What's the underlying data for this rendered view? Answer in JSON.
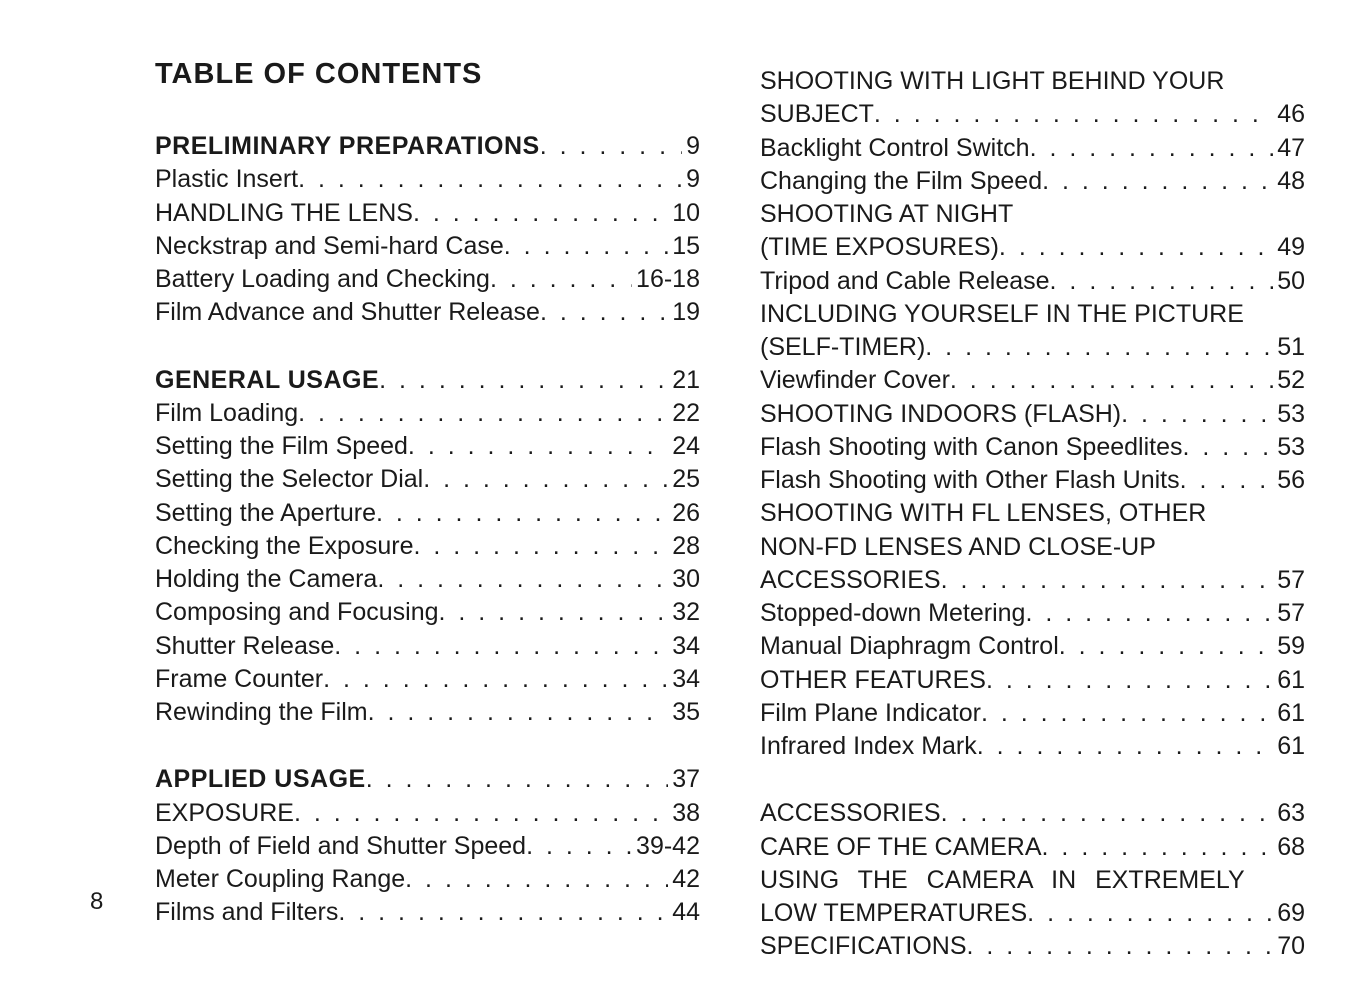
{
  "title": "TABLE OF CONTENTS",
  "page_number": "8",
  "left_groups": [
    {
      "entries": [
        {
          "label": "PRELIMINARY PREPARATIONS",
          "page": "9",
          "bold": true
        },
        {
          "label": "Plastic Insert",
          "page": "9"
        },
        {
          "label": "HANDLING THE LENS",
          "page": "10"
        },
        {
          "label": "Neckstrap and Semi-hard Case",
          "page": "15"
        },
        {
          "label": "Battery Loading and Checking",
          "page": "16-18"
        },
        {
          "label": "Film Advance and Shutter Release",
          "page": "19"
        }
      ]
    },
    {
      "entries": [
        {
          "label": "GENERAL USAGE",
          "page": "21",
          "bold": true
        },
        {
          "label": "Film Loading",
          "page": "22"
        },
        {
          "label": "Setting the Film Speed",
          "page": "24"
        },
        {
          "label": "Setting the Selector Dial",
          "page": "25"
        },
        {
          "label": "Setting the Aperture",
          "page": "26"
        },
        {
          "label": "Checking the Exposure",
          "page": "28"
        },
        {
          "label": "Holding the Camera",
          "page": "30"
        },
        {
          "label": "Composing and Focusing",
          "page": "32"
        },
        {
          "label": "Shutter Release",
          "page": "34"
        },
        {
          "label": "Frame Counter",
          "page": "34"
        },
        {
          "label": "Rewinding the Film",
          "page": "35"
        }
      ]
    },
    {
      "entries": [
        {
          "label": "APPLIED USAGE",
          "page": "37",
          "bold": true
        },
        {
          "label": "EXPOSURE",
          "page": "38"
        },
        {
          "label": "Depth of Field and Shutter Speed",
          "page": "39-42"
        },
        {
          "label": "Meter Coupling Range",
          "page": "42"
        },
        {
          "label": "Films and Filters",
          "page": "44"
        }
      ]
    }
  ],
  "right_groups": [
    {
      "entries": [
        {
          "label": "SHOOTING WITH LIGHT BEHIND YOUR",
          "nopage": true
        },
        {
          "label": "SUBJECT",
          "page": "46"
        },
        {
          "label": "Backlight Control Switch",
          "page": "47"
        },
        {
          "label": "Changing the Film Speed",
          "page": "48"
        },
        {
          "label": "SHOOTING  AT NIGHT",
          "nopage": true
        },
        {
          "label": "(TIME EXPOSURES)",
          "page": "49"
        },
        {
          "label": "Tripod and Cable Release",
          "page": "50"
        },
        {
          "label": "INCLUDING YOURSELF IN THE PICTURE",
          "nopage": true
        },
        {
          "label": "(SELF-TIMER)",
          "page": "51"
        },
        {
          "label": "Viewfinder Cover",
          "page": "52"
        },
        {
          "label": "SHOOTING INDOORS (FLASH)",
          "page": "53"
        },
        {
          "label": "Flash Shooting with Canon Speedlites",
          "page": "53"
        },
        {
          "label": "Flash Shooting with Other Flash Units",
          "page": "56"
        },
        {
          "label": "SHOOTING WITH FL LENSES, OTHER",
          "nopage": true
        },
        {
          "label": "NON-FD LENSES AND CLOSE-UP",
          "nopage": true
        },
        {
          "label": "ACCESSORIES",
          "page": "57"
        },
        {
          "label": "Stopped-down Metering",
          "page": "57"
        },
        {
          "label": "Manual Diaphragm Control",
          "page": "59"
        },
        {
          "label": "OTHER FEATURES",
          "page": "61"
        },
        {
          "label": "Film Plane Indicator",
          "page": "61"
        },
        {
          "label": "Infrared Index Mark",
          "page": "61"
        }
      ]
    },
    {
      "entries": [
        {
          "label": "ACCESSORIES",
          "page": "63"
        },
        {
          "label": "CARE OF THE CAMERA",
          "page": "68"
        },
        {
          "label": "USING THE CAMERA IN EXTREMELY",
          "nopage": true,
          "wide": true
        },
        {
          "label": "LOW TEMPERATURES",
          "page": "69"
        },
        {
          "label": "SPECIFICATIONS",
          "page": "70"
        }
      ]
    }
  ]
}
